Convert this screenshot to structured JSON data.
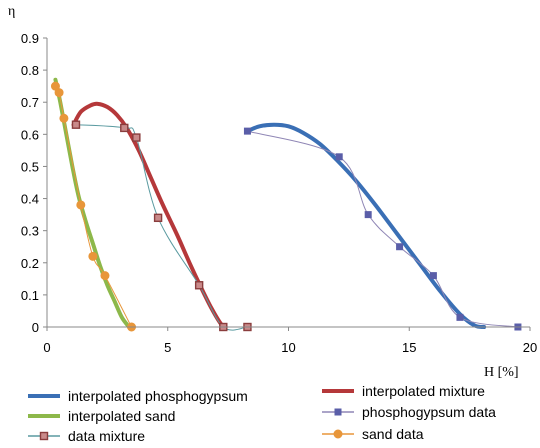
{
  "chart_data": {
    "type": "line",
    "ylabel": "η",
    "xlabel": "H [%]",
    "xlim": [
      0,
      20
    ],
    "ylim": [
      0,
      0.9
    ],
    "x_ticks": [
      0,
      5,
      10,
      15,
      20
    ],
    "y_ticks": [
      0,
      0.1,
      0.2,
      0.3,
      0.4,
      0.5,
      0.6,
      0.7,
      0.8,
      0.9
    ],
    "grid": false,
    "legend_position": "bottom",
    "series": [
      {
        "name": "interpolated phosphogypsum",
        "kind": "smooth-line",
        "color": "#3a6fb5",
        "x": [
          8.3,
          8.8,
          9.4,
          10.0,
          10.6,
          11.3,
          12.0,
          12.8,
          13.6,
          14.5,
          15.4,
          16.3,
          17.1,
          17.7,
          18.1
        ],
        "y": [
          0.61,
          0.625,
          0.63,
          0.625,
          0.605,
          0.57,
          0.52,
          0.455,
          0.38,
          0.29,
          0.2,
          0.11,
          0.04,
          0.005,
          0
        ]
      },
      {
        "name": "interpolated mixture",
        "kind": "smooth-line",
        "color": "#b5383a",
        "x": [
          1.1,
          1.4,
          1.8,
          2.1,
          2.5,
          2.9,
          3.3,
          3.8,
          4.3,
          4.8,
          5.4,
          5.9,
          6.4,
          6.8,
          7.2,
          7.4
        ],
        "y": [
          0.63,
          0.67,
          0.69,
          0.695,
          0.685,
          0.66,
          0.62,
          0.55,
          0.465,
          0.38,
          0.285,
          0.2,
          0.12,
          0.06,
          0.01,
          0
        ]
      },
      {
        "name": "interpolated sand",
        "kind": "smooth-line",
        "color": "#8db84a",
        "x": [
          0.35,
          0.55,
          0.8,
          1.05,
          1.3,
          1.6,
          1.9,
          2.2,
          2.5,
          2.8,
          3.1,
          3.4
        ],
        "y": [
          0.77,
          0.7,
          0.6,
          0.5,
          0.41,
          0.33,
          0.26,
          0.19,
          0.13,
          0.08,
          0.03,
          0
        ]
      },
      {
        "name": "phosphogypsum data",
        "kind": "markers",
        "marker": "square",
        "color": "#5a5ea8",
        "line_color": "#8f86b5",
        "x": [
          8.3,
          12.1,
          13.3,
          14.6,
          16.0,
          17.1,
          19.5
        ],
        "y": [
          0.61,
          0.53,
          0.35,
          0.25,
          0.16,
          0.03,
          0
        ]
      },
      {
        "name": "data mixture",
        "kind": "markers",
        "marker": "square-outline",
        "color": "#8a3d3d",
        "line_color": "#5a9aa0",
        "x": [
          1.2,
          3.2,
          3.7,
          4.6,
          6.3,
          7.3,
          8.3
        ],
        "y": [
          0.63,
          0.62,
          0.59,
          0.34,
          0.13,
          0,
          0
        ]
      },
      {
        "name": "sand data",
        "kind": "markers",
        "marker": "circle",
        "color": "#e8963a",
        "x": [
          0.35,
          0.5,
          0.7,
          1.4,
          1.9,
          2.4,
          3.5
        ],
        "y": [
          0.75,
          0.73,
          0.65,
          0.38,
          0.22,
          0.16,
          0
        ]
      }
    ]
  }
}
